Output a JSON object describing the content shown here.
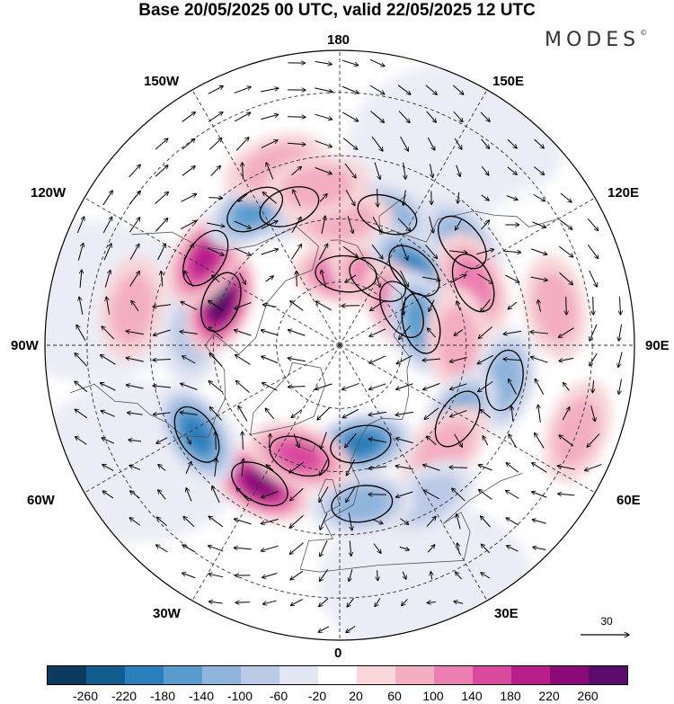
{
  "title": "Base 20/05/2025 00 UTC, valid 22/05/2025 12 UTC",
  "brand": "MODES",
  "brand_mark": "©",
  "longitude_labels": {
    "lon_180": "180",
    "lon_150w": "150W",
    "lon_150e": "150E",
    "lon_120w": "120W",
    "lon_120e": "120E",
    "lon_90w": "90W",
    "lon_90e": "90E",
    "lon_60w": "60W",
    "lon_60e": "60E",
    "lon_30w": "30W",
    "lon_30e": "30E",
    "lon_0": "0"
  },
  "reference_vector": {
    "label": "30"
  },
  "colorbar": {
    "labels": [
      "-260",
      "-220",
      "-180",
      "-140",
      "-100",
      "-60",
      "-20",
      "20",
      "60",
      "100",
      "140",
      "180",
      "220",
      "260"
    ],
    "colors": [
      "#0d3a5f",
      "#115d8f",
      "#2b7fbc",
      "#5a9bcd",
      "#8fb4dc",
      "#bcc9e6",
      "#e2e5f2",
      "#ffffff",
      "#f8d6d9",
      "#f3aec1",
      "#ec7fb1",
      "#d94a9e",
      "#b81f8d",
      "#8a0b78",
      "#5a0a6a"
    ]
  },
  "anomaly_blobs": [
    {
      "lon": 200,
      "lat": 55,
      "value": -140
    },
    {
      "lon": 160,
      "lat": 57,
      "value": -100
    },
    {
      "lon": 180,
      "lat": 60,
      "value": 60
    },
    {
      "lon": 175,
      "lat": 73,
      "value": 140
    },
    {
      "lon": 150,
      "lat": 72,
      "value": 100
    },
    {
      "lon": 135,
      "lat": 65,
      "value": -180
    },
    {
      "lon": 130,
      "lat": 52,
      "value": -100
    },
    {
      "lon": 115,
      "lat": 55,
      "value": 100
    },
    {
      "lon": 120,
      "lat": 73,
      "value": 140
    },
    {
      "lon": 105,
      "lat": 70,
      "value": -140
    },
    {
      "lon": 92,
      "lat": 62,
      "value": 60
    },
    {
      "lon": 78,
      "lat": 50,
      "value": -100
    },
    {
      "lon": 58,
      "lat": 57,
      "value": -140
    },
    {
      "lon": 45,
      "lat": 55,
      "value": 60
    },
    {
      "lon": 30,
      "lat": 48,
      "value": -60
    },
    {
      "lon": 12,
      "lat": 66,
      "value": -180
    },
    {
      "lon": 8,
      "lat": 52,
      "value": -100
    },
    {
      "lon": -30,
      "lat": 52,
      "value": 220
    },
    {
      "lon": -20,
      "lat": 62,
      "value": 140
    },
    {
      "lon": -58,
      "lat": 50,
      "value": -180
    },
    {
      "lon": -95,
      "lat": 55,
      "value": -60
    },
    {
      "lon": -110,
      "lat": 60,
      "value": 260
    },
    {
      "lon": -123,
      "lat": 52,
      "value": 180
    },
    {
      "lon": -148,
      "lat": 52,
      "value": -140
    },
    {
      "lon": -160,
      "lat": 45,
      "value": 60
    },
    {
      "lon": -172,
      "lat": 52,
      "value": 60
    },
    {
      "lon": -100,
      "lat": 40,
      "value": 60
    },
    {
      "lon": 100,
      "lat": 38,
      "value": 60
    },
    {
      "lon": 70,
      "lat": 30,
      "value": 60
    }
  ]
}
